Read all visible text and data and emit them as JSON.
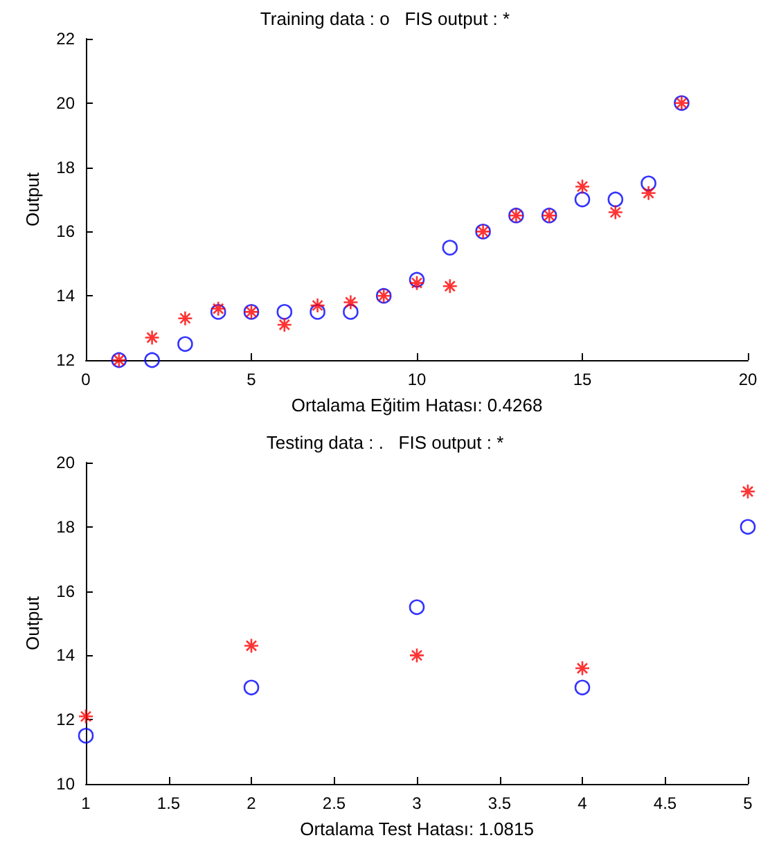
{
  "chart_data": [
    {
      "type": "scatter",
      "title": "Training data : o   FIS output : *",
      "xlabel": "Ortalama Eğitim Hatası: 0.4268",
      "ylabel": "Output",
      "x": [
        1,
        2,
        3,
        4,
        5,
        6,
        7,
        8,
        9,
        10,
        11,
        12,
        13,
        14,
        15,
        16,
        17,
        18
      ],
      "xlim": [
        0,
        20
      ],
      "xticks": [
        0,
        5,
        10,
        15,
        20
      ],
      "ylim": [
        12,
        22
      ],
      "yticks": [
        12,
        14,
        16,
        18,
        20,
        22
      ],
      "grid": false,
      "series": [
        {
          "color": "#0000ff",
          "marker": "circle",
          "values": [
            12,
            12,
            12.5,
            13.5,
            13.5,
            13.5,
            13.5,
            13.5,
            14,
            14.5,
            15.5,
            16,
            16.5,
            16.5,
            17,
            17,
            17.5,
            20
          ]
        },
        {
          "color": "#ff0000",
          "marker": "cross",
          "values": [
            12,
            12.7,
            13.3,
            13.6,
            13.5,
            13.1,
            13.7,
            13.8,
            14,
            14.4,
            14.3,
            16,
            16.5,
            16.5,
            17.4,
            16.6,
            17.2,
            20
          ]
        }
      ]
    },
    {
      "type": "scatter",
      "title": "Testing data : .   FIS output : *",
      "xlabel": "Ortalama Test Hatası: 1.0815",
      "ylabel": "Output",
      "x": [
        1,
        2,
        3,
        4,
        5
      ],
      "xlim": [
        1,
        5
      ],
      "xticks": [
        1,
        1.5,
        2,
        2.5,
        3,
        3.5,
        4,
        4.5,
        5
      ],
      "ylim": [
        10,
        20
      ],
      "yticks": [
        10,
        12,
        14,
        16,
        18,
        20
      ],
      "grid": false,
      "series": [
        {
          "color": "#0000ff",
          "marker": "circle",
          "values": [
            11.5,
            13,
            15.5,
            13,
            18
          ]
        },
        {
          "color": "#ff0000",
          "marker": "cross",
          "values": [
            12.1,
            14.3,
            14,
            13.6,
            19.1
          ]
        }
      ]
    }
  ]
}
